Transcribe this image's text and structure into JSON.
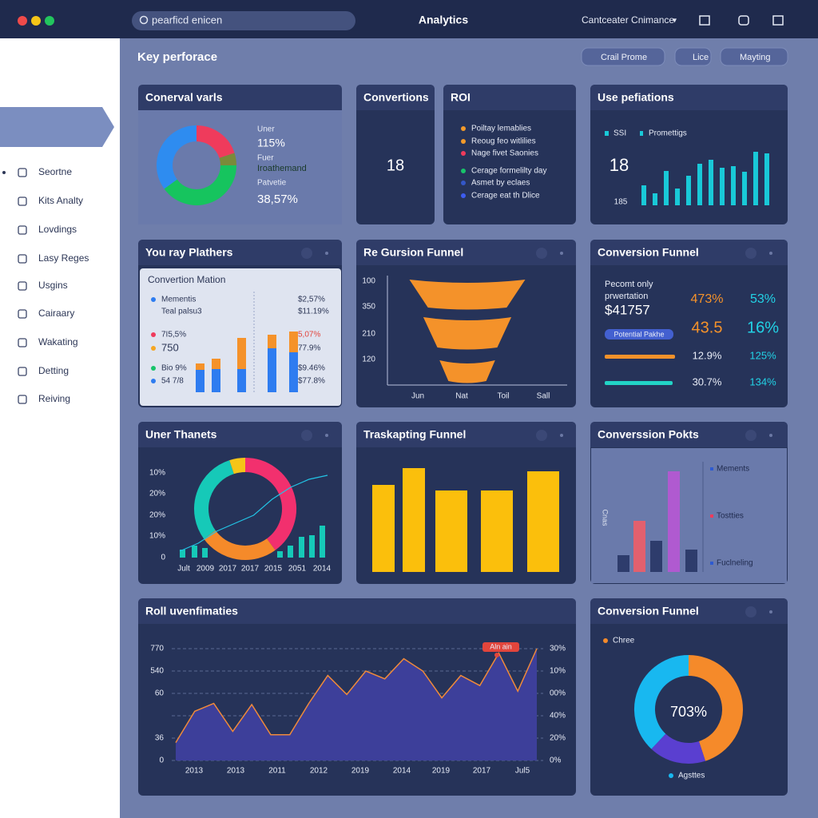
{
  "topbar": {
    "search": "pearficd enicen",
    "title": "Analytics",
    "account": "Cantceater Cnimance"
  },
  "sidebar": {
    "items": [
      "Seortne",
      "Kits Analty",
      "Lovdings",
      "Lasy Reges",
      "Usgins",
      "Cairaary",
      "Wakating",
      "Detting",
      "Reiving"
    ]
  },
  "header": {
    "title": "Key perforace",
    "buttons": [
      "Crail Prome",
      "Lice",
      "Mayting"
    ]
  },
  "conversion_variants": {
    "title": "Conerval varls",
    "labels": [
      "Uner",
      "115%",
      "Fuer",
      "Iroathemand",
      "Patvetie",
      "38,57%"
    ],
    "donut": {
      "values": [
        20,
        5,
        40,
        35
      ],
      "colors": [
        "#ef3b5c",
        "#7a8a3a",
        "#16c45e",
        "#2e8cf0"
      ]
    }
  },
  "conversions": {
    "title": "Convertions",
    "value": 18
  },
  "roi": {
    "title": "ROI",
    "items": [
      {
        "label": "Poiltay lemablies",
        "color": "#f39a2a"
      },
      {
        "label": "Reoug feo witlilies",
        "color": "#f39a2a"
      },
      {
        "label": "Nage fivet Saonies",
        "color": "#ef3b5c"
      },
      {
        "label": "Cerage formelilty day",
        "color": "#18c46a"
      },
      {
        "label": "Asmet by eclaes",
        "color": "#3457c8"
      },
      {
        "label": "Cerage eat th Dlice",
        "color": "#3d5cf0"
      }
    ]
  },
  "use_profiles": {
    "title": "Use pefiations",
    "legend": [
      "SSI",
      "Promettigs"
    ],
    "value": 18,
    "sub": 185,
    "color": "#19c9d8",
    "bars": [
      25,
      15,
      43,
      21,
      37,
      52,
      57,
      47,
      49,
      42,
      67,
      65
    ]
  },
  "platforms": {
    "title": "You ray Plathers",
    "subtitle": "Convertion Mation",
    "left": [
      {
        "label": "Mementis",
        "color": "#2e7cf0"
      },
      {
        "label": "Teal palsu3",
        "color": null
      },
      {
        "label": "7I5,5%",
        "color": "#ef3b5c"
      },
      {
        "label": "750",
        "color": "#f5a623"
      },
      {
        "label": "Bio 9%",
        "color": "#18c46a"
      },
      {
        "label": "54 7/8",
        "color": "#2e7cf0"
      }
    ],
    "right": [
      "$2,57%",
      "$11.19%",
      "5,07%",
      "77.9%",
      "$9.46%",
      "$77.8%"
    ],
    "blue": [
      28,
      29,
      29,
      55,
      50
    ],
    "orange": [
      8,
      13,
      39,
      17,
      26
    ]
  },
  "funnel_a": {
    "title": "Re Gursion Funnel",
    "ylabels": [
      "100",
      "350",
      "210",
      "120"
    ],
    "xlabels": [
      "Jun",
      "Nat",
      "Toil",
      "Sall"
    ],
    "values": [
      100,
      76,
      48
    ],
    "color": "#f4922a"
  },
  "funnel_b": {
    "title": "Conversion Funnel",
    "lines": [
      "Pecomt only",
      "prwertation",
      "$41757"
    ],
    "col1": [
      "473%",
      "43.5",
      "12.9%",
      "30.7%"
    ],
    "col2": [
      "53%",
      "16%",
      "125%",
      "134%"
    ],
    "pill": "Potential Pakhe"
  },
  "planets": {
    "title": "Uner Thanets",
    "ylabels": [
      "10%",
      "20%",
      "20%",
      "10%",
      "0"
    ],
    "xlabels": [
      "Jult",
      "2009",
      "2017",
      "2017",
      "2015",
      "2051",
      "2014"
    ],
    "donut": {
      "values": [
        40,
        25,
        30,
        5
      ],
      "colors": [
        "#f2306e",
        "#f58a2a",
        "#16c9b8",
        "#f5c518"
      ]
    },
    "line": [
      8,
      18,
      33,
      43,
      53,
      73,
      88,
      98,
      103
    ],
    "bars": [
      10,
      15,
      12,
      8,
      15,
      26,
      28,
      40
    ],
    "color": "#16c9b8"
  },
  "tracking": {
    "title": "Traskapting Funnel",
    "values": [
      109,
      130,
      102,
      102,
      126
    ],
    "color": "#fbbf0c"
  },
  "points": {
    "title": "Converssion Pokts",
    "axis_label": "Cnas",
    "values": [
      21,
      64,
      39,
      126,
      28
    ],
    "colors": [
      "#2e3c6c",
      "#e2606e",
      "#2e3c6c",
      "#b05ad0",
      "#2e3c6c"
    ],
    "legend": [
      {
        "label": "Mements",
        "color": "#2e5ad0"
      },
      {
        "label": "Tostties",
        "color": "#ef3b5c"
      },
      {
        "label": "Fuclneling",
        "color": "#2e5ad0"
      }
    ]
  },
  "roll": {
    "title": "Roll uvenfimaties",
    "ylabels": [
      "770",
      "540",
      "60",
      "36",
      "0"
    ],
    "y2labels": [
      "30%",
      "10%",
      "00%",
      "40%",
      "20%",
      "0%"
    ],
    "xlabels": [
      "2013",
      "2013",
      "2011",
      "2012",
      "2019",
      "2014",
      "2019",
      "2017",
      "Jul5"
    ],
    "annotation": "Aln ain",
    "values": [
      16,
      44,
      51,
      26,
      50,
      23,
      23,
      51,
      76,
      59,
      80,
      73,
      91,
      80,
      56,
      76,
      67,
      96,
      62,
      100
    ]
  },
  "funnel_c": {
    "title": "Conversion Funnel",
    "legend": [
      "Chree",
      "Agsttes"
    ],
    "center": "703%",
    "values": [
      45,
      17,
      38
    ],
    "colors": [
      "#f58a2a",
      "#5a3fd0",
      "#18b8f0"
    ]
  }
}
